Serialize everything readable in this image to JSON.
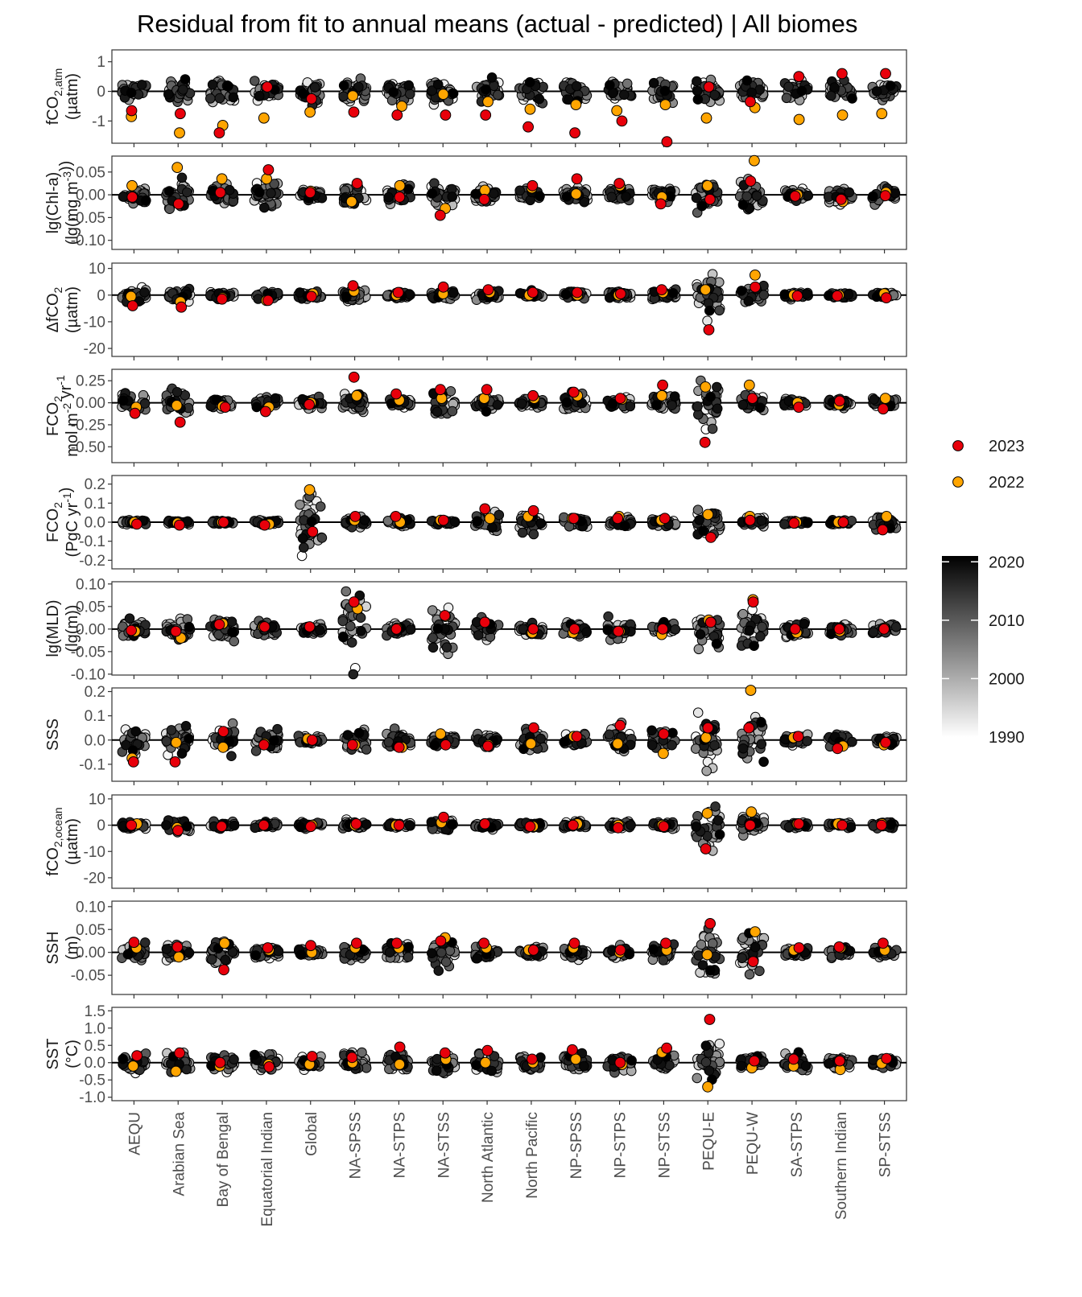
{
  "chart_data": {
    "type": "scatter",
    "title": "Residual from fit to annual means (actual - predicted) | All biomes",
    "categories": [
      "AEQU",
      "Arabian Sea",
      "Bay of Bengal",
      "Equatorial Indian",
      "Global",
      "NA-SPSS",
      "NA-STPS",
      "NA-STSS",
      "North Atlantic",
      "North Pacific",
      "NP-SPSS",
      "NP-STPS",
      "NP-STSS",
      "PEQU-E",
      "PEQU-W",
      "SA-STPS",
      "Southern Indian",
      "SP-STSS"
    ],
    "legend": {
      "placement": "right",
      "years": [
        {
          "label": "2023",
          "color": "#e8000b"
        },
        {
          "label": "2022",
          "color": "#ffa500"
        }
      ],
      "colorbar": {
        "ticks": [
          "2020",
          "2010",
          "2000",
          "1990"
        ],
        "range": [
          1990,
          2021
        ],
        "low_color": "#ffffff",
        "high_color": "#000000"
      }
    },
    "panels": [
      {
        "id": "fco2-atm",
        "ylabel_parts": [
          [
            "fCO",
            ""
          ],
          [
            "2,atm",
            "sub"
          ]
        ],
        "ylabel_line2": "(µatm)",
        "ylim": [
          -1.75,
          1.4
        ],
        "ticks": [
          1,
          0,
          -1
        ],
        "tick_labels": [
          "1",
          "0",
          "-1"
        ],
        "spread": [
          0.35,
          0.35,
          0.35,
          0.3,
          0.3,
          0.35,
          0.35,
          0.3,
          0.35,
          0.35,
          0.35,
          0.3,
          0.35,
          0.35,
          0.3,
          0.3,
          0.3,
          0.3
        ],
        "y2023": [
          -0.65,
          -0.75,
          -1.4,
          0.15,
          -0.25,
          -0.7,
          -0.8,
          -0.8,
          -0.8,
          -1.2,
          -1.4,
          -1.0,
          -1.7,
          0.15,
          -0.35,
          0.5,
          0.6,
          0.6
        ],
        "y2022": [
          -0.85,
          -1.4,
          -1.15,
          -0.9,
          -0.7,
          -0.15,
          -0.5,
          -0.1,
          -0.35,
          -0.6,
          -0.45,
          -0.65,
          -0.45,
          -0.9,
          -0.55,
          -0.95,
          -0.8,
          -0.75
        ]
      },
      {
        "id": "chl-a",
        "ylabel_parts": [
          [
            "lg(Chl-a)",
            ""
          ]
        ],
        "ylabel_line2_parts": [
          [
            "(lg(mg m",
            ""
          ],
          [
            "-3",
            "sup"
          ],
          [
            "))",
            ""
          ]
        ],
        "ylim": [
          -0.12,
          0.085
        ],
        "ticks": [
          0.05,
          0.0,
          -0.05,
          -0.1
        ],
        "tick_labels": [
          "0.05",
          "0.00",
          "-0.05",
          "-0.10"
        ],
        "spread": [
          0.02,
          0.035,
          0.02,
          0.025,
          0.012,
          0.02,
          0.018,
          0.018,
          0.018,
          0.012,
          0.02,
          0.015,
          0.018,
          0.03,
          0.03,
          0.015,
          0.018,
          0.018
        ],
        "y2023": [
          -0.005,
          -0.02,
          0.005,
          0.055,
          0.005,
          0.025,
          -0.005,
          -0.045,
          -0.01,
          0.02,
          0.035,
          0.025,
          -0.02,
          -0.01,
          0.03,
          -0.003,
          -0.01,
          -0.002
        ],
        "y2022": [
          0.02,
          0.06,
          0.035,
          0.035,
          0.008,
          -0.015,
          0.02,
          -0.03,
          0.01,
          0.015,
          0.002,
          0.02,
          -0.005,
          0.02,
          0.075,
          0.0,
          -0.015,
          0.005
        ]
      },
      {
        "id": "delta-fco2",
        "ylabel_parts": [
          [
            "ΔfCO",
            ""
          ],
          [
            "2",
            "sub"
          ]
        ],
        "ylabel_line2": "(µatm)",
        "ylim": [
          -23,
          12
        ],
        "ticks": [
          10,
          0,
          -10,
          -20
        ],
        "tick_labels": [
          "10",
          "0",
          "-10",
          "-20"
        ],
        "spread": [
          2.0,
          2.0,
          1.2,
          1.2,
          1.2,
          2.0,
          1.2,
          1.5,
          1.5,
          1.2,
          1.5,
          1.2,
          1.5,
          8.0,
          3.0,
          1.0,
          1.0,
          1.0
        ],
        "y2023": [
          -4,
          -4.5,
          -1.5,
          -2,
          -0.5,
          3.5,
          1,
          3,
          2,
          1,
          1,
          0.5,
          2,
          -13,
          3,
          -0.3,
          -0.3,
          -1
        ],
        "y2022": [
          -0.5,
          -2.5,
          -1,
          -2,
          0.5,
          1.5,
          0,
          0.5,
          1,
          0,
          0,
          0,
          1,
          2,
          7.5,
          0,
          0,
          0.5
        ]
      },
      {
        "id": "fco2-flux-area",
        "ylabel_parts": [
          [
            "FCO",
            ""
          ],
          [
            "2",
            "sub"
          ]
        ],
        "ylabel_line2_parts": [
          [
            "mol m",
            ""
          ],
          [
            "-2",
            "sup"
          ],
          [
            " yr",
            ""
          ],
          [
            "-1",
            "sup"
          ]
        ],
        "ylim": [
          -0.68,
          0.38
        ],
        "ticks": [
          0.25,
          0.0,
          -0.25,
          -0.5
        ],
        "tick_labels": [
          "0.25",
          "0.00",
          "-0.25",
          "-0.50"
        ],
        "spread": [
          0.1,
          0.15,
          0.05,
          0.06,
          0.06,
          0.12,
          0.06,
          0.15,
          0.08,
          0.05,
          0.1,
          0.05,
          0.1,
          0.3,
          0.08,
          0.04,
          0.05,
          0.05
        ],
        "y2023": [
          -0.12,
          -0.22,
          -0.05,
          -0.1,
          -0.02,
          0.29,
          0.1,
          0.15,
          0.15,
          0.08,
          0.12,
          0.05,
          0.2,
          -0.45,
          0.05,
          -0.05,
          0.02,
          -0.07
        ],
        "y2022": [
          -0.05,
          -0.03,
          -0.04,
          -0.05,
          0.0,
          0.08,
          0.03,
          0.05,
          0.05,
          0.05,
          0.08,
          0.04,
          0.08,
          0.18,
          0.2,
          0.0,
          -0.02,
          0.05
        ]
      },
      {
        "id": "fco2-flux-global",
        "ylabel_parts": [
          [
            "FCO",
            ""
          ],
          [
            "2",
            "sub"
          ]
        ],
        "ylabel_line2_parts": [
          [
            "(PgC yr",
            ""
          ],
          [
            "-1",
            "sup"
          ],
          [
            ")",
            ""
          ]
        ],
        "ylim": [
          -0.245,
          0.245
        ],
        "ticks": [
          0.2,
          0.1,
          0.0,
          -0.1,
          -0.2
        ],
        "tick_labels": [
          "0.2",
          "0.1",
          "0.0",
          "-0.1",
          "-0.2"
        ],
        "spread": [
          0.01,
          0.01,
          0.008,
          0.01,
          0.15,
          0.025,
          0.02,
          0.012,
          0.04,
          0.05,
          0.025,
          0.025,
          0.02,
          0.06,
          0.025,
          0.01,
          0.01,
          0.04
        ],
        "y2023": [
          -0.01,
          -0.015,
          0.0,
          -0.015,
          -0.05,
          0.03,
          0.03,
          0.01,
          0.07,
          0.06,
          0.02,
          0.02,
          0.02,
          -0.08,
          0.01,
          -0.005,
          0.0,
          -0.04
        ],
        "y2022": [
          0.0,
          -0.005,
          0.0,
          -0.01,
          0.17,
          0.01,
          0.0,
          0.01,
          0.02,
          0.03,
          0.02,
          0.03,
          0.01,
          0.04,
          0.03,
          0.0,
          0.0,
          0.03
        ]
      },
      {
        "id": "mld",
        "ylabel_parts": [
          [
            "lg(MLD)",
            ""
          ]
        ],
        "ylabel_line2": "(lg(m))",
        "ylim": [
          -0.102,
          0.105
        ],
        "ticks": [
          0.1,
          0.05,
          0.0,
          -0.05,
          -0.1
        ],
        "tick_labels": [
          "0.10",
          "0.05",
          "0.00",
          "-0.05",
          "-0.10"
        ],
        "spread": [
          0.02,
          0.025,
          0.025,
          0.015,
          0.01,
          0.08,
          0.012,
          0.05,
          0.025,
          0.015,
          0.015,
          0.02,
          0.015,
          0.04,
          0.04,
          0.015,
          0.012,
          0.015
        ],
        "y2023": [
          -0.003,
          -0.005,
          0.01,
          0.005,
          0.005,
          0.06,
          0.0,
          0.03,
          0.015,
          0.0,
          0.0,
          -0.005,
          0.0,
          0.015,
          0.06,
          0.0,
          0.0,
          0.0
        ],
        "y2022": [
          -0.005,
          -0.02,
          0.012,
          0.005,
          0.004,
          0.045,
          0.002,
          0.028,
          0.015,
          -0.008,
          -0.008,
          -0.005,
          -0.012,
          0.02,
          0.065,
          -0.008,
          -0.005,
          0.002
        ]
      },
      {
        "id": "sss",
        "ylabel_parts": [
          [
            "SSS",
            ""
          ]
        ],
        "ylabel_line2": "",
        "ylim": [
          -0.17,
          0.215
        ],
        "ticks": [
          0.2,
          0.1,
          0.0,
          -0.1
        ],
        "tick_labels": [
          "0.2",
          "0.1",
          "0.0",
          "-0.1"
        ],
        "spread": [
          0.06,
          0.07,
          0.05,
          0.05,
          0.015,
          0.04,
          0.04,
          0.03,
          0.025,
          0.04,
          0.03,
          0.05,
          0.04,
          0.1,
          0.09,
          0.02,
          0.025,
          0.02
        ],
        "y2023": [
          -0.09,
          -0.09,
          0.035,
          -0.02,
          0.0,
          -0.02,
          -0.03,
          -0.02,
          -0.025,
          0.05,
          0.015,
          0.06,
          0.025,
          0.05,
          0.05,
          0.015,
          -0.035,
          -0.01
        ],
        "y2022": [
          -0.075,
          -0.01,
          -0.03,
          -0.015,
          0.005,
          -0.02,
          -0.03,
          0.025,
          -0.02,
          -0.015,
          0.015,
          -0.015,
          -0.055,
          0.01,
          0.205,
          0.01,
          -0.025,
          -0.02
        ]
      },
      {
        "id": "fco2-ocean",
        "ylabel_parts": [
          [
            "fCO",
            ""
          ],
          [
            "2,ocean",
            "sub"
          ]
        ],
        "ylabel_line2": "(µatm)",
        "ylim": [
          -24,
          11.5
        ],
        "ticks": [
          10,
          0,
          -10,
          -20
        ],
        "tick_labels": [
          "10",
          "0",
          "-10",
          "-20"
        ],
        "spread": [
          1.5,
          2.0,
          1.2,
          1.2,
          1.2,
          1.5,
          1.2,
          2.0,
          1.2,
          1.2,
          1.5,
          1.2,
          1.5,
          8.0,
          3.0,
          1.0,
          1.0,
          1.2
        ],
        "y2023": [
          0.0,
          -2.0,
          -0.5,
          0.0,
          -0.5,
          0.5,
          0.0,
          3.0,
          0.5,
          -0.5,
          0.0,
          -1.0,
          -0.5,
          -9.0,
          0.0,
          0.5,
          0.0,
          0.0
        ],
        "y2022": [
          0.5,
          -1.0,
          -0.5,
          0.0,
          0.0,
          0.0,
          0.0,
          1.0,
          0.5,
          -0.5,
          0.5,
          0.0,
          0.0,
          4.5,
          5.0,
          0.5,
          0.5,
          0.5
        ]
      },
      {
        "id": "ssh",
        "ylabel_parts": [
          [
            "SSH",
            ""
          ]
        ],
        "ylabel_line2": "(m)",
        "ylim": [
          -0.092,
          0.112
        ],
        "ticks": [
          0.1,
          0.05,
          0.0,
          -0.05
        ],
        "tick_labels": [
          "0.10",
          "0.05",
          "0.00",
          "-0.05"
        ],
        "spread": [
          0.015,
          0.015,
          0.025,
          0.012,
          0.008,
          0.015,
          0.015,
          0.03,
          0.015,
          0.012,
          0.015,
          0.012,
          0.02,
          0.05,
          0.04,
          0.01,
          0.012,
          0.01
        ],
        "y2023": [
          0.022,
          0.012,
          -0.038,
          0.01,
          0.015,
          0.02,
          0.02,
          0.025,
          0.02,
          0.005,
          0.02,
          0.005,
          0.02,
          0.063,
          -0.02,
          0.01,
          0.012,
          0.02
        ],
        "y2022": [
          0.01,
          -0.01,
          0.02,
          0.005,
          0.0,
          0.01,
          0.01,
          0.032,
          0.01,
          0.005,
          0.01,
          0.0,
          0.005,
          -0.005,
          0.045,
          0.005,
          0.01,
          0.005
        ]
      },
      {
        "id": "sst",
        "ylabel_parts": [
          [
            "SST",
            ""
          ]
        ],
        "ylabel_line2": "(°C)",
        "ylim": [
          -1.1,
          1.6
        ],
        "ticks": [
          1.5,
          1.0,
          0.5,
          0.0,
          -0.5,
          -1.0
        ],
        "tick_labels": [
          "1.5",
          "1.0",
          "0.5",
          "0.0",
          "-0.5",
          "-1.0"
        ],
        "spread": [
          0.3,
          0.3,
          0.25,
          0.25,
          0.15,
          0.35,
          0.25,
          0.25,
          0.25,
          0.2,
          0.3,
          0.2,
          0.3,
          0.6,
          0.2,
          0.2,
          0.15,
          0.15
        ],
        "y2023": [
          0.2,
          0.28,
          0.0,
          -0.12,
          0.18,
          0.15,
          0.45,
          0.28,
          0.35,
          0.1,
          0.37,
          0.0,
          0.42,
          1.25,
          0.05,
          0.1,
          0.05,
          0.12
        ],
        "y2022": [
          -0.1,
          -0.25,
          -0.1,
          -0.05,
          -0.05,
          0.0,
          -0.05,
          0.1,
          0.0,
          0.0,
          0.1,
          -0.05,
          0.3,
          -0.7,
          -0.15,
          -0.1,
          -0.2,
          -0.02
        ]
      }
    ]
  }
}
